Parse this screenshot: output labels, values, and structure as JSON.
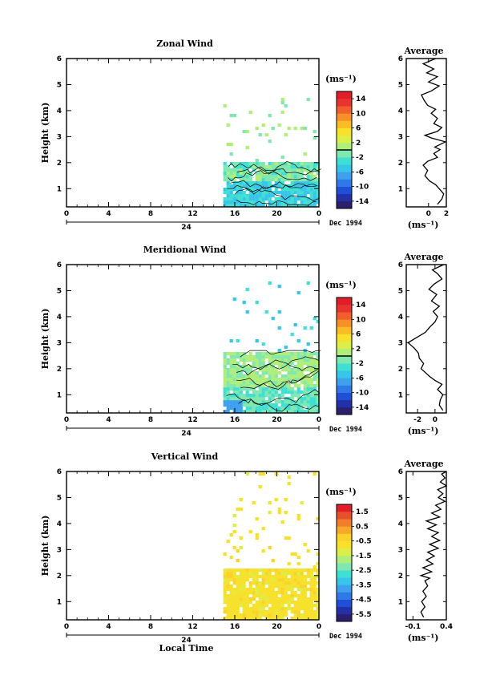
{
  "chart_data": [
    {
      "type": "heatmap",
      "title": "Zonal Wind",
      "ylabel": "Height (km)",
      "xlabel": "",
      "x_ticks": [
        "0",
        "4",
        "8",
        "12",
        "16",
        "20",
        "0"
      ],
      "y_ticks": [
        "1",
        "2",
        "3",
        "4",
        "5",
        "6"
      ],
      "xlim": [
        0,
        24
      ],
      "ylim": [
        0.3,
        6
      ],
      "date_marker": "24",
      "date_label": "Dec 1994",
      "colorbar": {
        "unit": "(ms⁻¹)",
        "range": [
          -16,
          16
        ],
        "ticks": [
          14,
          10,
          6,
          2,
          -2,
          -6,
          -10,
          -14
        ],
        "tick_labels": [
          "14",
          "10",
          "6",
          "2",
          "-2",
          "-6",
          "-10",
          "-14"
        ],
        "zero_line": 0
      },
      "data_extent": {
        "x": [
          14.9,
          24
        ],
        "y": [
          0.3,
          4.6
        ]
      },
      "average": {
        "title": "Average",
        "unit": "(ms⁻¹)",
        "xlim": [
          -2.5,
          2
        ],
        "x_ticks": [
          0,
          2
        ],
        "x_tick_labels": [
          "0",
          "2"
        ],
        "ylim": [
          0.3,
          6
        ],
        "y_ticks": [
          "1",
          "2",
          "3",
          "4",
          "5",
          "6"
        ],
        "profile": [
          [
            1.0,
            0.4
          ],
          [
            1.5,
            0.6
          ],
          [
            1.7,
            0.8
          ],
          [
            1.2,
            1.0
          ],
          [
            0.8,
            1.15
          ],
          [
            0.1,
            1.3
          ],
          [
            -0.4,
            1.5
          ],
          [
            -0.1,
            1.7
          ],
          [
            -0.6,
            1.9
          ],
          [
            -0.1,
            2.05
          ],
          [
            1.0,
            2.2
          ],
          [
            0.6,
            2.35
          ],
          [
            1.3,
            2.5
          ],
          [
            0.7,
            2.6
          ],
          [
            1.9,
            2.8
          ],
          [
            0.3,
            2.95
          ],
          [
            -0.4,
            3.05
          ],
          [
            1.0,
            3.2
          ],
          [
            1.5,
            3.35
          ],
          [
            0.6,
            3.5
          ],
          [
            1.0,
            3.7
          ],
          [
            0.3,
            3.9
          ],
          [
            0.8,
            4.05
          ],
          [
            -0.1,
            4.2
          ],
          [
            -0.5,
            4.4
          ],
          [
            -0.8,
            4.6
          ],
          [
            0.3,
            4.75
          ],
          [
            1.2,
            4.95
          ],
          [
            0.0,
            5.1
          ],
          [
            1.0,
            5.3
          ],
          [
            -0.2,
            5.45
          ],
          [
            0.6,
            5.6
          ],
          [
            -0.6,
            5.8
          ],
          [
            0.8,
            6.0
          ]
        ]
      }
    },
    {
      "type": "heatmap",
      "title": "Meridional Wind",
      "ylabel": "Height (km)",
      "xlabel": "",
      "x_ticks": [
        "0",
        "4",
        "8",
        "12",
        "16",
        "20",
        "0"
      ],
      "y_ticks": [
        "1",
        "2",
        "3",
        "4",
        "5",
        "6"
      ],
      "xlim": [
        0,
        24
      ],
      "ylim": [
        0.3,
        6
      ],
      "date_marker": "24",
      "date_label": "Dec 1994",
      "colorbar": {
        "unit": "(ms⁻¹)",
        "range": [
          -16,
          16
        ],
        "ticks": [
          14,
          10,
          6,
          2,
          -2,
          -6,
          -10,
          -14
        ],
        "tick_labels": [
          "14",
          "10",
          "6",
          "2",
          "-2",
          "-6",
          "-10",
          "-14"
        ],
        "zero_line": 0
      },
      "data_extent": {
        "x": [
          14.9,
          24
        ],
        "y": [
          0.3,
          5.5
        ]
      },
      "average": {
        "title": "Average",
        "unit": "(ms⁻¹)",
        "xlim": [
          -3.3,
          1.3
        ],
        "x_ticks": [
          -2,
          0
        ],
        "x_tick_labels": [
          "-2",
          "0"
        ],
        "ylim": [
          0.3,
          6
        ],
        "y_ticks": [
          "1",
          "2",
          "3",
          "4",
          "5",
          "6"
        ],
        "profile": [
          [
            0.9,
            0.4
          ],
          [
            0.5,
            0.6
          ],
          [
            0.6,
            0.8
          ],
          [
            0.9,
            1.0
          ],
          [
            0.3,
            1.2
          ],
          [
            0.8,
            1.4
          ],
          [
            0.0,
            1.55
          ],
          [
            -0.6,
            1.7
          ],
          [
            -1.1,
            1.85
          ],
          [
            -1.6,
            2.0
          ],
          [
            -1.3,
            2.2
          ],
          [
            -1.8,
            2.4
          ],
          [
            -1.9,
            2.6
          ],
          [
            -2.4,
            2.8
          ],
          [
            -3.1,
            3.0
          ],
          [
            -2.1,
            3.2
          ],
          [
            -1.1,
            3.4
          ],
          [
            -0.6,
            3.6
          ],
          [
            0.0,
            3.8
          ],
          [
            0.3,
            4.0
          ],
          [
            -0.2,
            4.2
          ],
          [
            0.5,
            4.4
          ],
          [
            -0.4,
            4.6
          ],
          [
            0.2,
            4.85
          ],
          [
            -0.7,
            5.05
          ],
          [
            -0.1,
            5.25
          ],
          [
            0.8,
            5.45
          ],
          [
            0.3,
            5.65
          ],
          [
            -0.3,
            5.8
          ],
          [
            1.0,
            6.0
          ]
        ]
      }
    },
    {
      "type": "heatmap",
      "title": "Vertical Wind",
      "ylabel": "Height (km)",
      "xlabel": "Local Time",
      "x_ticks": [
        "0",
        "4",
        "8",
        "12",
        "16",
        "20",
        "0"
      ],
      "y_ticks": [
        "1",
        "2",
        "3",
        "4",
        "5",
        "6"
      ],
      "xlim": [
        0,
        24
      ],
      "ylim": [
        0.3,
        6
      ],
      "date_marker": "24",
      "date_label": "Dec 1994",
      "colorbar": {
        "unit": "(ms⁻¹)",
        "range": [
          -6.0,
          2.0
        ],
        "ticks": [
          1.5,
          0.5,
          -0.5,
          -1.5,
          -2.5,
          -3.5,
          -4.5,
          -5.5
        ],
        "tick_labels": [
          "1.5",
          "0.5",
          "-0.5",
          "-1.5",
          "-2.5",
          "-3.5",
          "-4.5",
          "-5.5"
        ]
      },
      "data_extent": {
        "x": [
          14.9,
          24
        ],
        "y": [
          0.3,
          6.0
        ]
      },
      "average": {
        "title": "Average",
        "unit": "(ms⁻¹)",
        "xlim": [
          -0.2,
          0.4
        ],
        "x_ticks": [
          -0.1,
          0.4
        ],
        "x_tick_labels": [
          "-0.1",
          "0.4"
        ],
        "ylim": [
          0.3,
          6
        ],
        "y_ticks": [
          "1",
          "2",
          "3",
          "4",
          "5",
          "6"
        ],
        "profile": [
          [
            0.06,
            0.4
          ],
          [
            0.02,
            0.6
          ],
          [
            0.08,
            0.8
          ],
          [
            0.03,
            1.0
          ],
          [
            0.1,
            1.2
          ],
          [
            0.05,
            1.4
          ],
          [
            0.12,
            1.6
          ],
          [
            0.08,
            1.8
          ],
          [
            0.15,
            1.9
          ],
          [
            0.02,
            2.0
          ],
          [
            0.18,
            2.15
          ],
          [
            0.05,
            2.3
          ],
          [
            0.2,
            2.45
          ],
          [
            0.1,
            2.6
          ],
          [
            0.22,
            2.75
          ],
          [
            0.12,
            2.9
          ],
          [
            0.28,
            3.05
          ],
          [
            0.15,
            3.2
          ],
          [
            0.3,
            3.35
          ],
          [
            0.18,
            3.5
          ],
          [
            0.28,
            3.65
          ],
          [
            0.12,
            3.8
          ],
          [
            0.25,
            3.95
          ],
          [
            0.1,
            4.1
          ],
          [
            0.3,
            4.25
          ],
          [
            0.18,
            4.4
          ],
          [
            0.32,
            4.55
          ],
          [
            0.24,
            4.7
          ],
          [
            0.38,
            4.85
          ],
          [
            0.28,
            5.0
          ],
          [
            0.35,
            5.15
          ],
          [
            0.27,
            5.3
          ],
          [
            0.4,
            5.45
          ],
          [
            0.31,
            5.6
          ],
          [
            0.38,
            5.75
          ],
          [
            0.33,
            5.9
          ],
          [
            0.4,
            6.0
          ]
        ]
      }
    }
  ]
}
